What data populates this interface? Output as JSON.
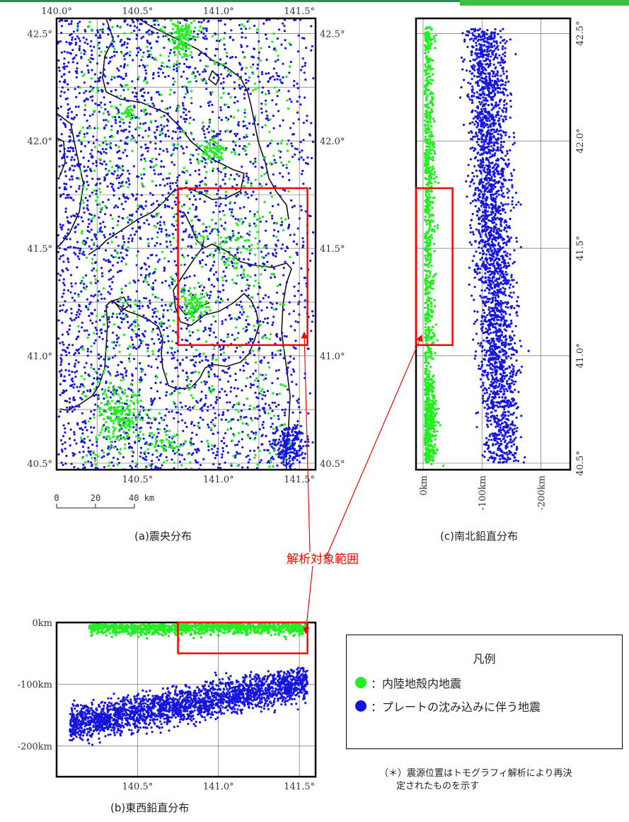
{
  "colors": {
    "crustal": "#22ee22",
    "subduction": "#1515dd",
    "frame": "#000000",
    "grid": "#555555",
    "target_box": "#ff0000",
    "coast": "#111111",
    "accent_bar": "#3fbf3f"
  },
  "captions": {
    "a": "(a)震央分布",
    "b": "(b)東西鉛直分布",
    "c": "(c)南北鉛直分布"
  },
  "target_label": "解析対象範囲",
  "legend": {
    "title": "凡例",
    "items": [
      {
        "label": "：内陸地殻内地震",
        "color_key": "crustal"
      },
      {
        "label": "：プレートの沈み込みに伴う地震",
        "color_key": "subduction"
      }
    ]
  },
  "footnote": {
    "line1": "（＊）震源位置はトモグラフィ解析により再決",
    "line2": "定されたものを示す"
  },
  "scale_bar": {
    "labels": [
      "0",
      "20",
      "40 km"
    ]
  },
  "chart_data": [
    {
      "id": "a",
      "type": "scatter",
      "title": "(a)震央分布",
      "xlabel": "",
      "ylabel": "",
      "xlim": [
        140.0,
        141.6
      ],
      "ylim": [
        40.47,
        42.57
      ],
      "xticks_top": [
        "140.0°",
        "140.5°",
        "141.0°",
        "141.5°"
      ],
      "xticks_bottom": [
        "140.5°",
        "141.0°",
        "141.5°"
      ],
      "yticks": [
        "42.5°",
        "42.0°",
        "41.5°",
        "41.0°",
        "40.5°"
      ],
      "grid": true,
      "series": [
        {
          "name": "内陸地殻内地震",
          "color_key": "crustal",
          "count": 1400
        },
        {
          "name": "プレートの沈み込みに伴う地震",
          "color_key": "subduction",
          "count": 3700
        }
      ],
      "target_region": {
        "lon": [
          140.75,
          141.55
        ],
        "lat": [
          41.05,
          41.78
        ]
      }
    },
    {
      "id": "b",
      "type": "scatter",
      "title": "(b)東西鉛直分布",
      "xlabel": "",
      "ylabel": "",
      "xlim": [
        140.0,
        141.6
      ],
      "ylim": [
        0,
        250
      ],
      "xticks": [
        "140.5°",
        "141.0°",
        "141.5°"
      ],
      "yticks": [
        "0km",
        "-100km",
        "-200km"
      ],
      "grid": true,
      "depth_trend": {
        "crustal": [
          0,
          25
        ],
        "subduction_at_140_1": 165,
        "subduction_at_141_5": 100
      },
      "target_region": {
        "lon": [
          140.75,
          141.55
        ],
        "depth": [
          0,
          50
        ]
      }
    },
    {
      "id": "c",
      "type": "scatter",
      "title": "(c)南北鉛直分布",
      "xlabel": "",
      "ylabel": "",
      "xlim": [
        0,
        250
      ],
      "ylim": [
        40.47,
        42.57
      ],
      "xticks": [
        "0km",
        "-100km",
        "-200km"
      ],
      "yticks": [
        "42.5°",
        "42.0°",
        "41.5°",
        "41.0°",
        "40.5°"
      ],
      "grid": true,
      "depth_band": {
        "crustal": [
          0,
          25
        ],
        "subduction": [
          100,
          175
        ]
      },
      "target_region": {
        "lat": [
          41.05,
          41.78
        ],
        "depth": [
          0,
          50
        ]
      }
    }
  ]
}
